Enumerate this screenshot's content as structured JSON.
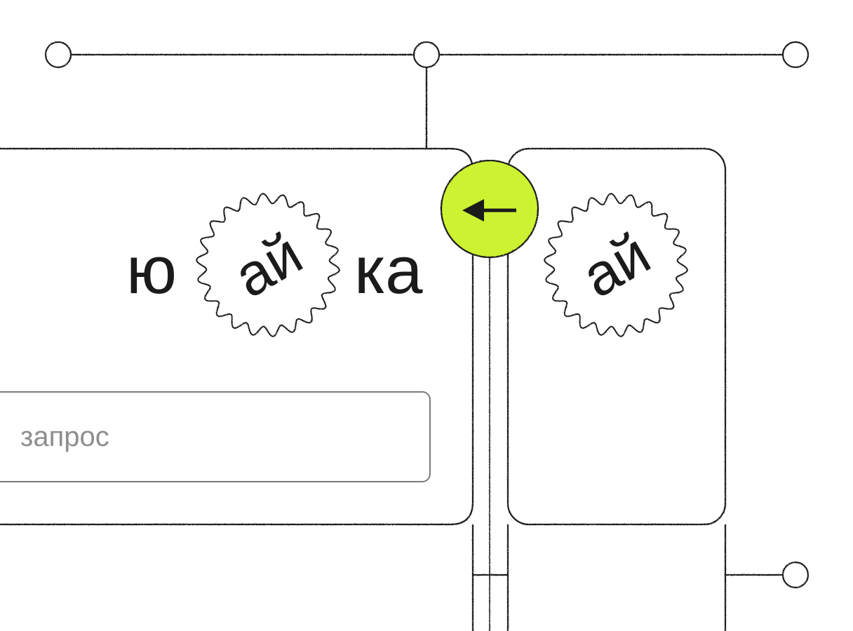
{
  "logo": {
    "prefix": "ю",
    "stamp": "ай",
    "suffix": "ка"
  },
  "secondary_card": {
    "stamp": "ай"
  },
  "search": {
    "value": "",
    "placeholder": "запрос"
  },
  "back_button": {
    "icon": "arrow-left-icon",
    "accent_color": "#cdf233"
  },
  "colors": {
    "line": "#1b1b1b",
    "accent": "#cdf233"
  }
}
